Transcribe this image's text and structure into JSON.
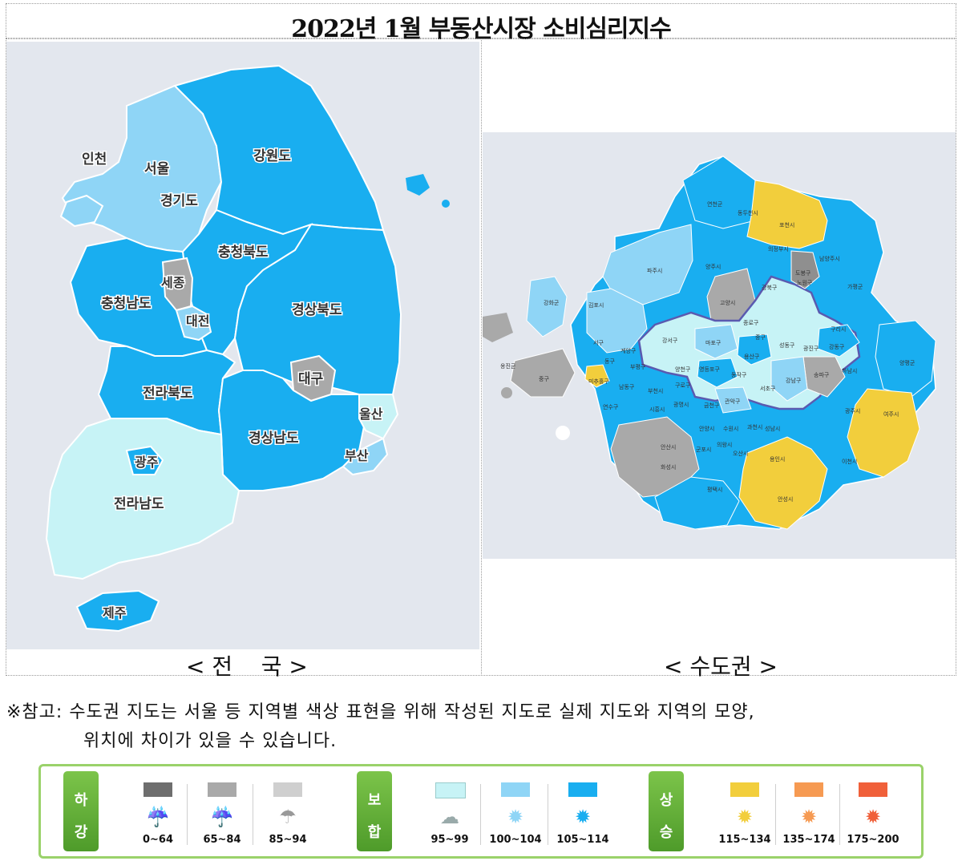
{
  "title": "2022년 1월 부동산시장 소비심리지수",
  "captions": {
    "nation": "< 전    국 >",
    "capital": "< 수도권 >"
  },
  "note": {
    "line1": "※참고: 수도권 지도는 서울 등 지역별 색상 표현을 위해 작성된 지도로 실제 지도와 지역의 모양,",
    "line2": "위치에 차이가 있을 수 있습니다."
  },
  "colors": {
    "fall_dark": "#6e6e6e",
    "fall_mid": "#a9a9a9",
    "fall_light": "#cfcfcf",
    "hold_1": "#c7f3f6",
    "hold_2": "#8fd5f6",
    "hold_3": "#19aef0",
    "rise_1": "#f2ce3c",
    "rise_2": "#f69a52",
    "rise_3": "#f0603a"
  },
  "nation_regions": [
    {
      "name": "인천",
      "level": "hold_2"
    },
    {
      "name": "서울",
      "level": "hold_2"
    },
    {
      "name": "경기도",
      "level": "hold_2"
    },
    {
      "name": "강원도",
      "level": "hold_3"
    },
    {
      "name": "충청북도",
      "level": "hold_3"
    },
    {
      "name": "세종",
      "level": "fall_mid"
    },
    {
      "name": "충청남도",
      "level": "hold_3"
    },
    {
      "name": "대전",
      "level": "hold_2"
    },
    {
      "name": "경상북도",
      "level": "hold_3"
    },
    {
      "name": "대구",
      "level": "fall_mid"
    },
    {
      "name": "전라북도",
      "level": "hold_3"
    },
    {
      "name": "울산",
      "level": "hold_1"
    },
    {
      "name": "경상남도",
      "level": "hold_3"
    },
    {
      "name": "부산",
      "level": "hold_2"
    },
    {
      "name": "광주",
      "level": "hold_3"
    },
    {
      "name": "전라남도",
      "level": "hold_1"
    },
    {
      "name": "제주",
      "level": "hold_3"
    }
  ],
  "capital_labels": {
    "yeoncheon": "연천군",
    "dongducheon": "동두천시",
    "pocheon": "포천시",
    "yangju": "양주시",
    "namyangju": "남양주시",
    "gapyeong": "가평군",
    "paju": "파주시",
    "uijeongbu": "의정부시",
    "dobong": "도봉구",
    "nowon": "노원구",
    "gangbuk": "강북구",
    "ganghwa": "강화군",
    "gimpo": "김포시",
    "goyang": "고양시",
    "yangpyeong": "양평군",
    "seo": "서구",
    "gangseo": "강서구",
    "mapo": "마포구",
    "jongno": "종로구",
    "jung": "중구",
    "yongsan": "용산구",
    "seongdong": "성동구",
    "gwangjin": "광진구",
    "gangdong": "강동구",
    "hanam": "하남시",
    "guri": "구리시",
    "songpa": "송파구",
    "gangnam": "강남구",
    "seocho": "서초구",
    "gwanak": "관악구",
    "dongjak": "동작구",
    "yeongdeungpo": "영등포구",
    "guro": "구로구",
    "geumcheon": "금천구",
    "yangcheon": "양천구",
    "bucheon": "부천시",
    "gwangmyeong": "광명시",
    "siheung": "시흥시",
    "ansan": "안산시",
    "gwacheon": "과천시",
    "anyang": "안양시",
    "uiwang": "의왕시",
    "gunpo": "군포시",
    "seongnam": "성남시",
    "suwon": "수원시",
    "yongin": "용인시",
    "hwaseong": "화성시",
    "osan": "오산시",
    "pyeongtaek": "평택시",
    "anseong": "안성시",
    "icheon": "이천시",
    "yeoju": "여주시",
    "gwangju": "광주시",
    "jung2": "중구",
    "michuhol": "미추홀구",
    "namdong": "남동구",
    "yeonsu": "연수구",
    "bupyeong": "부평구",
    "gyeyang": "계양구",
    "dong": "동구",
    "ongjin": "옹진군"
  },
  "legend": {
    "groups": [
      {
        "label_top": "하",
        "label_bottom": "강"
      },
      {
        "label_top": "보",
        "label_bottom": "합"
      },
      {
        "label_top": "상",
        "label_bottom": "승"
      }
    ],
    "items": [
      {
        "range": "0~64",
        "color": "#6e6e6e",
        "icon": "heavy-rain-cloud-icon"
      },
      {
        "range": "65~84",
        "color": "#a9a9a9",
        "icon": "rain-cloud-icon"
      },
      {
        "range": "85~94",
        "color": "#cfcfcf",
        "icon": "light-rain-cloud-icon"
      },
      {
        "range": "95~99",
        "color": "#c7f3f6",
        "icon": "cloud-icon"
      },
      {
        "range": "100~104",
        "color": "#8fd5f6",
        "icon": "light-sun-icon"
      },
      {
        "range": "105~114",
        "color": "#19aef0",
        "icon": "blue-sun-icon"
      },
      {
        "range": "115~134",
        "color": "#f2ce3c",
        "icon": "yellow-sun-icon"
      },
      {
        "range": "135~174",
        "color": "#f69a52",
        "icon": "orange-sun-icon"
      },
      {
        "range": "175~200",
        "color": "#f0603a",
        "icon": "red-sun-icon"
      }
    ]
  }
}
